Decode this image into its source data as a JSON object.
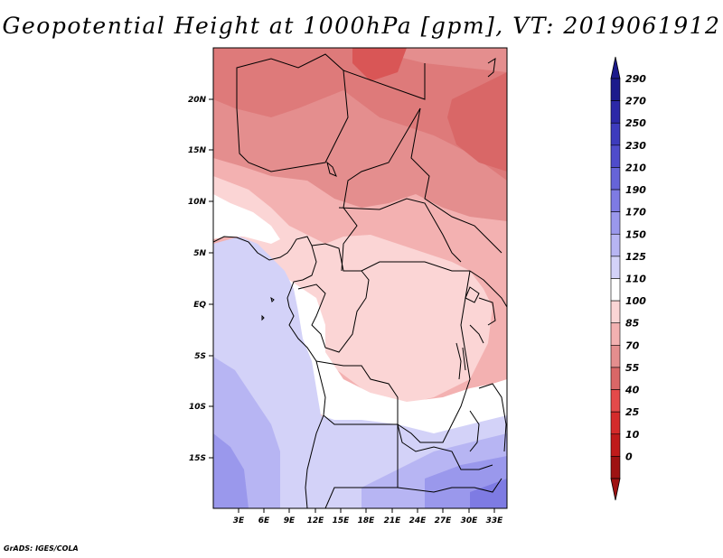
{
  "title": "Geopotential Height at 1000hPa [gpm], VT: 2019061912",
  "footer": "GrADS: IGES/COLA",
  "map": {
    "variable": "Geopotential Height",
    "level": "1000hPa",
    "units": "gpm",
    "valid_time": "2019061912",
    "lon_labels": [
      "3E",
      "6E",
      "9E",
      "12E",
      "15E",
      "18E",
      "21E",
      "24E",
      "27E",
      "30E",
      "33E"
    ],
    "lat_labels": [
      "20N",
      "15N",
      "10N",
      "5N",
      "EQ",
      "5S",
      "10S",
      "15S"
    ]
  },
  "colorbar": {
    "labels": [
      "290",
      "270",
      "250",
      "230",
      "210",
      "190",
      "170",
      "150",
      "125",
      "110",
      "100",
      "85",
      "70",
      "55",
      "40",
      "25",
      "10",
      "0"
    ],
    "colors": [
      "#1c1a8c",
      "#2c28a8",
      "#3d3bbd",
      "#4f4ccb",
      "#6664d8",
      "#7e7be3",
      "#9a98ec",
      "#b7b5f3",
      "#d3d2f8",
      "#ffffff",
      "#fbd5d5",
      "#f3b1b1",
      "#e48e8e",
      "#d96767",
      "#e44a4a",
      "#d42b2b",
      "#bf1b1b",
      "#9e1212"
    ]
  }
}
